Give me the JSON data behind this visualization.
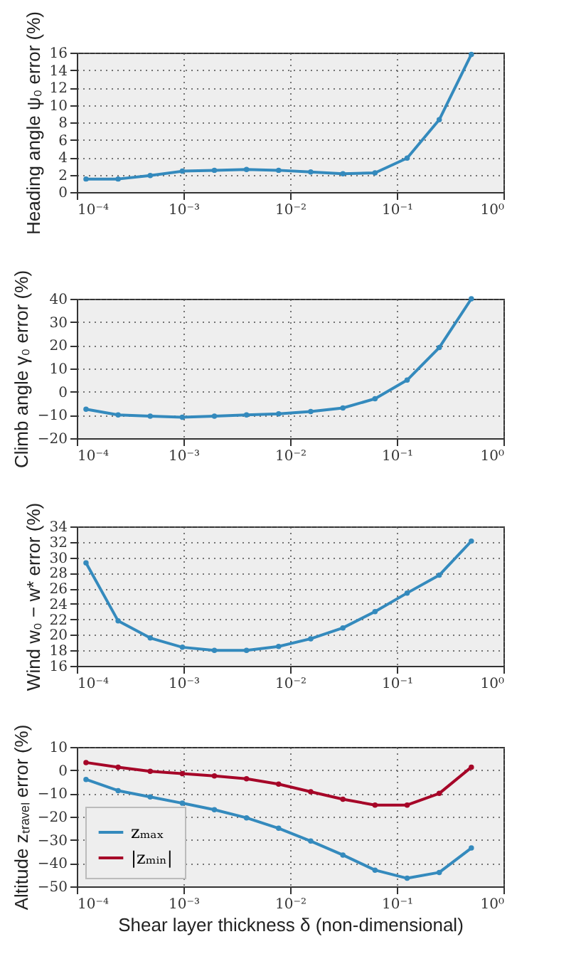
{
  "chart_data": [
    {
      "type": "line",
      "ylabel": "Heading angle ψ₀ error (%)",
      "log": "x",
      "grid": true,
      "marker": "circle",
      "line_style": "solid",
      "x": [
        0.000122,
        0.000244,
        0.000488,
        0.000977,
        0.00195,
        0.0039,
        0.0078,
        0.0156,
        0.03125,
        0.0625,
        0.125,
        0.25,
        0.5
      ],
      "xlim": [
        0.0001,
        1
      ],
      "xticks": [
        {
          "value": 0.0001,
          "label": "10⁻⁴"
        },
        {
          "value": 0.001,
          "label": "10⁻³"
        },
        {
          "value": 0.01,
          "label": "10⁻²"
        },
        {
          "value": 0.1,
          "label": "10⁻¹"
        },
        {
          "value": 1,
          "label": "10⁰"
        }
      ],
      "ylim": [
        0,
        16
      ],
      "yticks": [
        0,
        2,
        4,
        6,
        8,
        10,
        12,
        14,
        16
      ],
      "series": [
        {
          "color": "#348abd",
          "values": [
            1.5,
            1.5,
            1.9,
            2.4,
            2.5,
            2.6,
            2.5,
            2.3,
            2.1,
            2.2,
            3.9,
            8.3,
            15.8
          ]
        }
      ]
    },
    {
      "type": "line",
      "ylabel": "Climb angle γ₀ error (%)",
      "log": "x",
      "grid": true,
      "marker": "circle",
      "line_style": "solid",
      "x": [
        0.000122,
        0.000244,
        0.000488,
        0.000977,
        0.00195,
        0.0039,
        0.0078,
        0.0156,
        0.03125,
        0.0625,
        0.125,
        0.25,
        0.5
      ],
      "xlim": [
        0.0001,
        1
      ],
      "xticks": [
        {
          "value": 0.0001,
          "label": "10⁻⁴"
        },
        {
          "value": 0.001,
          "label": "10⁻³"
        },
        {
          "value": 0.01,
          "label": "10⁻²"
        },
        {
          "value": 0.1,
          "label": "10⁻¹"
        },
        {
          "value": 1,
          "label": "10⁰"
        }
      ],
      "ylim": [
        -20,
        40
      ],
      "yticks": [
        {
          "value": -20,
          "label": "−20"
        },
        {
          "value": -10,
          "label": "−10"
        },
        0,
        10,
        20,
        30,
        40
      ],
      "series": [
        {
          "color": "#348abd",
          "values": [
            -7.5,
            -10,
            -10.5,
            -11,
            -10.5,
            -10,
            -9.5,
            -8.5,
            -7,
            -3,
            5,
            19,
            40
          ]
        }
      ]
    },
    {
      "type": "line",
      "ylabel": "Wind w₀ − w* error (%)",
      "log": "x",
      "grid": true,
      "marker": "circle",
      "line_style": "solid",
      "x": [
        0.000122,
        0.000244,
        0.000488,
        0.000977,
        0.00195,
        0.0039,
        0.0078,
        0.0156,
        0.03125,
        0.0625,
        0.125,
        0.25,
        0.5
      ],
      "xlim": [
        0.0001,
        1
      ],
      "xticks": [
        {
          "value": 0.0001,
          "label": "10⁻⁴"
        },
        {
          "value": 0.001,
          "label": "10⁻³"
        },
        {
          "value": 0.01,
          "label": "10⁻²"
        },
        {
          "value": 0.1,
          "label": "10⁻¹"
        },
        {
          "value": 1,
          "label": "10⁰"
        }
      ],
      "ylim": [
        16,
        34
      ],
      "yticks": [
        16,
        18,
        20,
        22,
        24,
        26,
        28,
        30,
        32,
        34
      ],
      "series": [
        {
          "color": "#348abd",
          "values": [
            29.3,
            21.8,
            19.6,
            18.4,
            18.0,
            18.0,
            18.5,
            19.5,
            20.9,
            23.0,
            25.4,
            27.7,
            32.1
          ]
        }
      ]
    },
    {
      "type": "line",
      "ylabel": "Altitude zₜᵣₐᵥₑₗ error (%)",
      "xlabel": "Shear layer thickness δ (non-dimensional)",
      "log": "x",
      "grid": true,
      "marker": "circle",
      "line_style": "solid",
      "legend": "bottom left",
      "x": [
        0.000122,
        0.000244,
        0.000488,
        0.000977,
        0.00195,
        0.0039,
        0.0078,
        0.0156,
        0.03125,
        0.0625,
        0.125,
        0.25,
        0.5
      ],
      "xlim": [
        0.0001,
        1
      ],
      "xticks": [
        {
          "value": 0.0001,
          "label": "10⁻⁴"
        },
        {
          "value": 0.001,
          "label": "10⁻³"
        },
        {
          "value": 0.01,
          "label": "10⁻²"
        },
        {
          "value": 0.1,
          "label": "10⁻¹"
        },
        {
          "value": 1,
          "label": "10⁰"
        }
      ],
      "ylim": [
        -50,
        10
      ],
      "yticks": [
        {
          "value": -50,
          "label": "−50"
        },
        {
          "value": -40,
          "label": "−40"
        },
        {
          "value": -30,
          "label": "−30"
        },
        {
          "value": -20,
          "label": "−20"
        },
        {
          "value": -10,
          "label": "−10"
        },
        0,
        10
      ],
      "series": [
        {
          "name": "zₘₐₓ",
          "color": "#348abd",
          "values": [
            -4,
            -8.8,
            -11.5,
            -14.2,
            -17,
            -20.5,
            -25,
            -30.5,
            -36.5,
            -43,
            -46.5,
            -44,
            -33.5
          ]
        },
        {
          "name": "|zₘᵢₙ|",
          "color": "#a60628",
          "values": [
            3.3,
            1.3,
            -0.5,
            -1.5,
            -2.5,
            -3.7,
            -6,
            -9.3,
            -12.5,
            -15,
            -15,
            -10,
            1.3
          ]
        }
      ]
    }
  ]
}
